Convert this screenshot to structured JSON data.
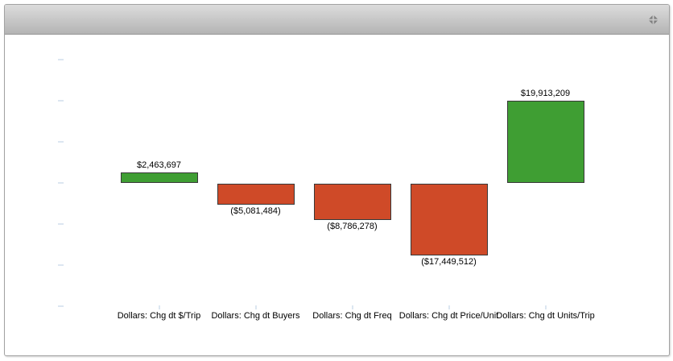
{
  "widget": {
    "header": {
      "title": "",
      "maximize_icon": "maximize-icon"
    }
  },
  "chart_data": {
    "type": "bar",
    "title": "",
    "xlabel": "",
    "ylabel": "",
    "categories": [
      "Dollars: Chg dt $/Trip",
      "Dollars: Chg dt Buyers",
      "Dollars: Chg dt Freq",
      "Dollars: Chg dt Price/Unit",
      "Dollars: Chg dt Units/Trip"
    ],
    "values": [
      2463697,
      -5081484,
      -8786278,
      -17449512,
      19913209
    ],
    "value_labels": [
      "$2,463,697",
      "($5,081,484)",
      "($8,786,278)",
      "($17,449,512)",
      "$19,913,209"
    ],
    "ylim": [
      -35000000,
      35000000
    ],
    "ytick_values": [
      30000000,
      20000000,
      10000000,
      0,
      -10000000,
      -20000000,
      -30000000
    ],
    "ytick_labels_visible": false,
    "grid": false,
    "legend": false,
    "positive_color": "#3f9e33",
    "negative_color": "#cf4a28",
    "bar_border_color": "#383838",
    "tick_color": "#dce6f1"
  }
}
